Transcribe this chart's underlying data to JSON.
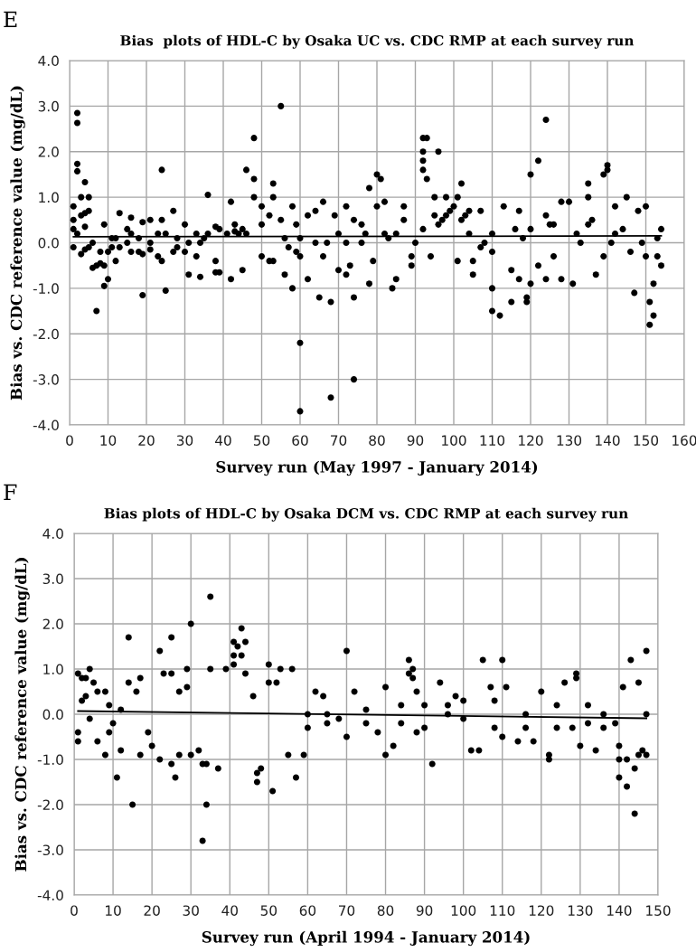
{
  "chart_data": [
    {
      "type": "scatter",
      "title": "Bias  plots of HDL-C by Osaka UC vs. CDC RMP at each survey run",
      "xlabel": "Survey run (May 1997 - January 2014)",
      "ylabel": "Bias vs. CDC reference value (mg/dL)",
      "annotations": [
        "E"
      ],
      "grid": true,
      "xlim": [
        0,
        160
      ],
      "xticks": [
        0,
        10,
        20,
        30,
        40,
        50,
        60,
        70,
        80,
        90,
        100,
        110,
        120,
        130,
        140,
        150,
        160
      ],
      "ylim": [
        -4,
        4
      ],
      "yticks": [
        {
          "value": -4,
          "label": "-4.0"
        },
        {
          "value": -3,
          "label": "-3.0"
        },
        {
          "value": -2,
          "label": "-2.0"
        },
        {
          "value": -1,
          "label": "-1.0"
        },
        {
          "value": 0,
          "label": "0.0"
        },
        {
          "value": 1,
          "label": "1.0"
        },
        {
          "value": 2,
          "label": "2.0"
        },
        {
          "value": 3,
          "label": "3.0"
        },
        {
          "value": 4,
          "label": "4.0"
        }
      ],
      "series": [
        {
          "marker": "circle",
          "color": "#000000",
          "x": [
            1,
            1,
            1,
            1,
            2,
            2,
            2,
            2,
            2,
            3,
            3,
            3,
            4,
            4,
            4,
            4,
            5,
            5,
            5,
            6,
            6,
            7,
            7,
            8,
            8,
            9,
            9,
            9,
            10,
            10,
            11,
            11,
            12,
            12,
            13,
            13,
            15,
            15,
            16,
            16,
            16,
            18,
            18,
            19,
            19,
            19,
            21,
            21,
            21,
            23,
            23,
            24,
            24,
            24,
            25,
            25,
            27,
            27,
            28,
            28,
            30,
            30,
            31,
            31,
            33,
            33,
            34,
            34,
            35,
            36,
            36,
            38,
            38,
            38,
            39,
            39,
            41,
            42,
            42,
            43,
            43,
            44,
            45,
            45,
            46,
            46,
            48,
            48,
            48,
            50,
            50,
            50,
            52,
            52,
            53,
            53,
            53,
            55,
            55,
            56,
            56,
            57,
            58,
            58,
            59,
            59,
            60,
            60,
            60,
            60,
            62,
            62,
            64,
            64,
            65,
            66,
            66,
            67,
            68,
            68,
            69,
            70,
            70,
            72,
            72,
            72,
            73,
            74,
            74,
            74,
            76,
            76,
            77,
            78,
            78,
            79,
            80,
            80,
            81,
            82,
            82,
            83,
            84,
            85,
            85,
            87,
            87,
            89,
            89,
            90,
            92,
            92,
            92,
            92,
            92,
            93,
            93,
            94,
            95,
            95,
            96,
            96,
            97,
            98,
            98,
            99,
            100,
            101,
            101,
            102,
            102,
            103,
            104,
            104,
            105,
            105,
            107,
            107,
            108,
            110,
            110,
            110,
            110,
            112,
            113,
            115,
            115,
            116,
            117,
            117,
            118,
            119,
            119,
            120,
            120,
            120,
            122,
            122,
            124,
            124,
            124,
            125,
            126,
            126,
            128,
            128,
            130,
            131,
            132,
            133,
            135,
            135,
            135,
            136,
            137,
            139,
            139,
            140,
            140,
            141,
            142,
            142,
            144,
            145,
            146,
            147,
            148,
            149,
            150,
            150,
            151,
            151,
            152,
            152,
            153,
            153,
            154,
            154
          ],
          "values": [
            0.8,
            0.5,
            0.3,
            -0.1,
            2.85,
            2.63,
            1.73,
            1.57,
            0.2,
            1.0,
            0.6,
            -0.25,
            1.33,
            0.65,
            0.35,
            -0.15,
            1.0,
            0.7,
            -0.1,
            -0.55,
            0.0,
            -1.5,
            -0.5,
            -0.2,
            -0.45,
            0.4,
            -0.5,
            -0.95,
            -0.8,
            -0.2,
            0.1,
            -0.1,
            -0.4,
            0.1,
            0.65,
            -0.1,
            0.3,
            0.0,
            0.55,
            0.2,
            -0.2,
            0.1,
            -0.2,
            0.45,
            -1.15,
            -0.25,
            0.5,
            0.0,
            -0.15,
            -0.3,
            0.2,
            1.6,
            0.5,
            -0.4,
            -1.05,
            0.2,
            0.7,
            -0.2,
            0.1,
            -0.1,
            0.4,
            -0.2,
            -0.7,
            0.0,
            0.2,
            -0.3,
            -0.75,
            0.0,
            0.1,
            1.05,
            0.2,
            -0.4,
            -0.65,
            0.35,
            -0.65,
            0.3,
            0.2,
            0.9,
            -0.8,
            0.4,
            0.25,
            0.2,
            -0.6,
            0.3,
            1.6,
            0.2,
            2.3,
            1.4,
            1.0,
            0.8,
            0.4,
            -0.3,
            0.6,
            -0.4,
            1.3,
            1.0,
            -0.4,
            3.0,
            0.5,
            -0.7,
            0.1,
            -0.1,
            0.8,
            -1.0,
            0.4,
            -0.2,
            -2.2,
            -3.7,
            -0.3,
            0.1,
            0.6,
            -0.8,
            0.7,
            0.0,
            -1.2,
            0.9,
            -0.3,
            0.0,
            -1.3,
            -3.4,
            0.6,
            -0.6,
            0.2,
            0.8,
            -0.7,
            0.0,
            -0.5,
            -1.2,
            -3.0,
            0.5,
            0.4,
            0.0,
            0.2,
            1.2,
            -0.9,
            -0.4,
            1.5,
            0.8,
            1.4,
            0.9,
            0.2,
            0.1,
            -1.0,
            -0.8,
            0.2,
            0.5,
            0.8,
            -0.5,
            -0.3,
            0.0,
            2.3,
            2.0,
            1.8,
            1.6,
            0.3,
            2.3,
            1.4,
            -0.3,
            1.0,
            0.6,
            2.0,
            0.4,
            0.5,
            1.0,
            0.6,
            0.7,
            0.8,
            1.0,
            -0.4,
            1.3,
            0.5,
            0.6,
            0.7,
            0.2,
            -0.7,
            -0.4,
            0.7,
            -0.1,
            0.0,
            -1.5,
            -1.0,
            -0.2,
            0.2,
            -1.6,
            0.8,
            -1.3,
            -0.6,
            0.3,
            0.7,
            -0.8,
            0.1,
            -1.3,
            -1.2,
            1.5,
            -0.9,
            0.3,
            1.8,
            -0.5,
            2.7,
            -0.8,
            0.6,
            0.4,
            0.4,
            -0.3,
            -0.8,
            0.9,
            0.9,
            -0.9,
            0.2,
            0.0,
            1.3,
            1.0,
            0.4,
            0.5,
            -0.7,
            1.5,
            -0.3,
            1.7,
            1.6,
            0.0,
            0.8,
            0.2,
            0.3,
            1.0,
            -0.2,
            -1.1,
            0.7,
            0.0,
            0.8,
            -0.3,
            -1.8,
            -1.3,
            -0.9,
            -1.6,
            -0.3,
            0.1,
            0.3,
            -0.5
          ]
        },
        {
          "type": "line",
          "color": "#000000",
          "x": [
            1,
            154
          ],
          "values": [
            0.13,
            0.15
          ],
          "marker": "none"
        }
      ]
    },
    {
      "type": "scatter",
      "title": "Bias plots of HDL-C by Osaka DCM vs. CDC RMP at each survey run",
      "xlabel": "Survey run (April 1994 - January 2014)",
      "ylabel": "Bias vs. CDC reference value (mg/dL)",
      "annotations": [
        "F"
      ],
      "grid": true,
      "xlim": [
        0,
        150
      ],
      "xticks": [
        0,
        10,
        20,
        30,
        40,
        50,
        60,
        70,
        80,
        90,
        100,
        110,
        120,
        130,
        140,
        150
      ],
      "ylim": [
        -4,
        4
      ],
      "yticks": [
        {
          "value": -4,
          "label": "-4.0"
        },
        {
          "value": -3,
          "label": "-3.0"
        },
        {
          "value": -2,
          "label": "-2.0"
        },
        {
          "value": -1,
          "label": "-1.0"
        },
        {
          "value": 0,
          "label": "0.0"
        },
        {
          "value": 1,
          "label": "1.0"
        },
        {
          "value": 2,
          "label": "2.0"
        },
        {
          "value": 3,
          "label": "3.0"
        },
        {
          "value": 4,
          "label": "4.0"
        }
      ],
      "series": [
        {
          "marker": "circle",
          "color": "#000000",
          "x": [
            1,
            1,
            1,
            2,
            2,
            3,
            3,
            4,
            4,
            5,
            6,
            6,
            8,
            8,
            9,
            9,
            10,
            11,
            12,
            12,
            14,
            14,
            15,
            16,
            17,
            17,
            19,
            20,
            22,
            22,
            23,
            25,
            25,
            25,
            26,
            27,
            27,
            29,
            29,
            30,
            30,
            32,
            33,
            33,
            34,
            34,
            35,
            35,
            37,
            39,
            41,
            41,
            41,
            42,
            43,
            43,
            44,
            44,
            46,
            47,
            47,
            48,
            50,
            50,
            51,
            52,
            53,
            55,
            56,
            57,
            59,
            60,
            60,
            62,
            64,
            65,
            65,
            68,
            70,
            70,
            72,
            75,
            75,
            78,
            80,
            80,
            82,
            84,
            84,
            86,
            86,
            87,
            87,
            88,
            88,
            90,
            90,
            92,
            94,
            96,
            96,
            98,
            100,
            100,
            102,
            104,
            105,
            107,
            108,
            108,
            110,
            110,
            111,
            114,
            116,
            116,
            118,
            120,
            122,
            122,
            124,
            124,
            126,
            128,
            129,
            129,
            130,
            132,
            132,
            134,
            136,
            136,
            139,
            140,
            140,
            140,
            141,
            142,
            142,
            143,
            144,
            144,
            145,
            145,
            146,
            147,
            147,
            147
          ],
          "values": [
            0.9,
            -0.4,
            -0.6,
            0.8,
            0.3,
            0.8,
            0.4,
            1.0,
            -0.1,
            0.7,
            -0.6,
            0.5,
            -0.9,
            0.5,
            -0.4,
            0.2,
            -0.2,
            -1.4,
            -0.8,
            0.1,
            1.7,
            0.7,
            -2.0,
            0.5,
            0.8,
            -0.9,
            -0.4,
            -0.7,
            1.4,
            -1.0,
            0.9,
            1.7,
            0.9,
            -1.1,
            -1.4,
            -0.9,
            0.5,
            0.6,
            1.0,
            2.0,
            -0.9,
            -0.8,
            -2.8,
            -1.1,
            -2.0,
            -1.1,
            2.6,
            1.0,
            -1.2,
            1.0,
            1.6,
            1.3,
            1.1,
            1.5,
            1.9,
            1.3,
            1.6,
            0.9,
            0.4,
            -1.3,
            -1.5,
            -1.2,
            1.1,
            0.7,
            -1.7,
            0.7,
            1.0,
            -0.9,
            1.0,
            -1.4,
            -0.9,
            0.0,
            -0.3,
            0.5,
            0.4,
            0.0,
            -0.2,
            -0.1,
            1.4,
            -0.5,
            0.5,
            -0.2,
            0.1,
            -0.4,
            0.6,
            -0.9,
            -0.7,
            0.2,
            -0.2,
            1.2,
            0.9,
            1.0,
            0.8,
            0.5,
            -0.4,
            0.2,
            -0.3,
            -1.1,
            0.7,
            0.0,
            0.2,
            0.4,
            0.3,
            -0.1,
            -0.8,
            -0.8,
            1.2,
            0.6,
            0.3,
            -0.3,
            1.2,
            -0.5,
            0.6,
            -0.6,
            0.0,
            -0.3,
            -0.6,
            0.5,
            -0.9,
            -1.0,
            -0.3,
            0.2,
            0.7,
            -0.3,
            0.9,
            0.8,
            -0.7,
            0.2,
            -0.2,
            -0.8,
            0.0,
            -0.3,
            -0.2,
            -0.7,
            -1.0,
            -1.4,
            0.6,
            -1.6,
            -1.0,
            1.2,
            -2.2,
            -1.2,
            0.7,
            -0.9,
            -0.8,
            1.4,
            -0.9,
            0.0
          ]
        },
        {
          "type": "line",
          "color": "#000000",
          "x": [
            1,
            147
          ],
          "values": [
            0.07,
            -0.09
          ],
          "marker": "none"
        }
      ]
    }
  ]
}
